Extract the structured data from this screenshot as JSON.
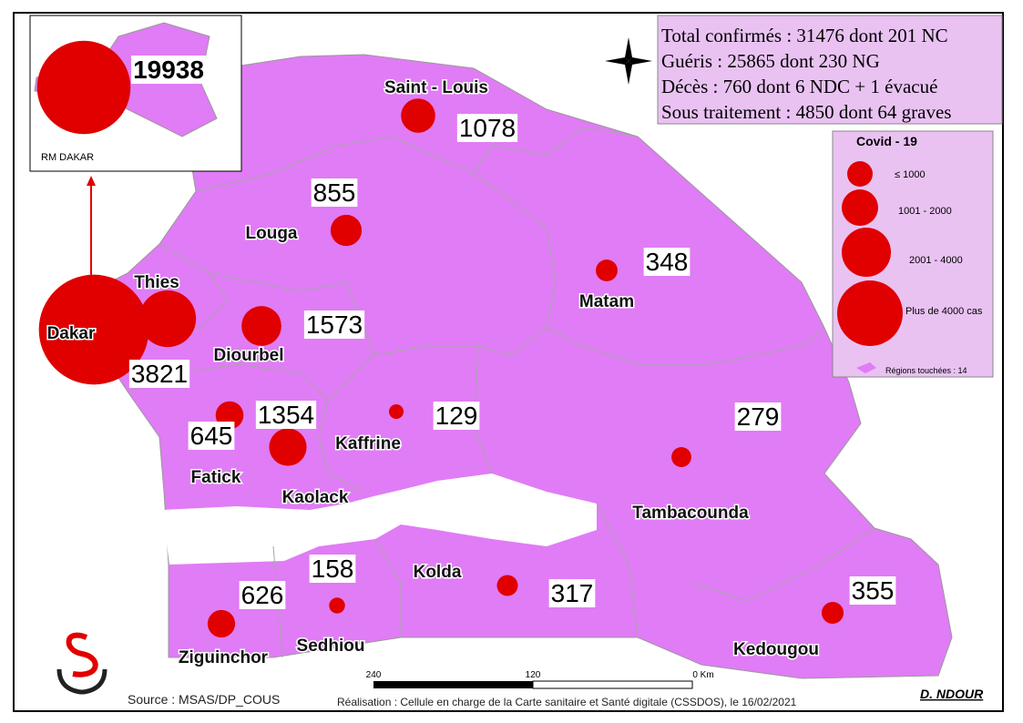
{
  "info": {
    "lines": [
      "Total confirmés : 31476 dont 201 NC",
      "Guéris : 25865  dont  230 NG",
      "Décès : 760  dont 6 NDC + 1 évacué",
      "Sous traitement : 4850  dont 64 graves"
    ]
  },
  "legend": {
    "title": "Covid - 19",
    "classes": [
      "≤ 1000",
      "1001 - 2000",
      "2001 - 4000",
      "Plus de 4000 cas"
    ],
    "regions_note": "Régions touchées : 14"
  },
  "inset": {
    "label": "RM DAKAR"
  },
  "regions": [
    {
      "name": "Dakar",
      "cases": 19938
    },
    {
      "name": "Thies",
      "cases": 3821
    },
    {
      "name": "Diourbel",
      "cases": 1573
    },
    {
      "name": "Louga",
      "cases": 855
    },
    {
      "name": "Saint - Louis",
      "cases": 1078
    },
    {
      "name": "Matam",
      "cases": 348
    },
    {
      "name": "Kaffrine",
      "cases": 129
    },
    {
      "name": "Kaolack",
      "cases": 1354
    },
    {
      "name": "Fatick",
      "cases": 645
    },
    {
      "name": "Tambacounda",
      "cases": 279
    },
    {
      "name": "Kolda",
      "cases": 317
    },
    {
      "name": "Sedhiou",
      "cases": 158
    },
    {
      "name": "Ziguinchor",
      "cases": 626
    },
    {
      "name": "Kedougou",
      "cases": 355
    }
  ],
  "scale": {
    "ticks": [
      240,
      120
    ],
    "end": "0 Km"
  },
  "footer": {
    "source": "Source : MSAS/DP_COUS",
    "credit": "Réalisation : Cellule en charge de la Carte sanitaire et Santé digitale (CSSDOS), le 16/02/2021",
    "author": "D. NDOUR"
  }
}
